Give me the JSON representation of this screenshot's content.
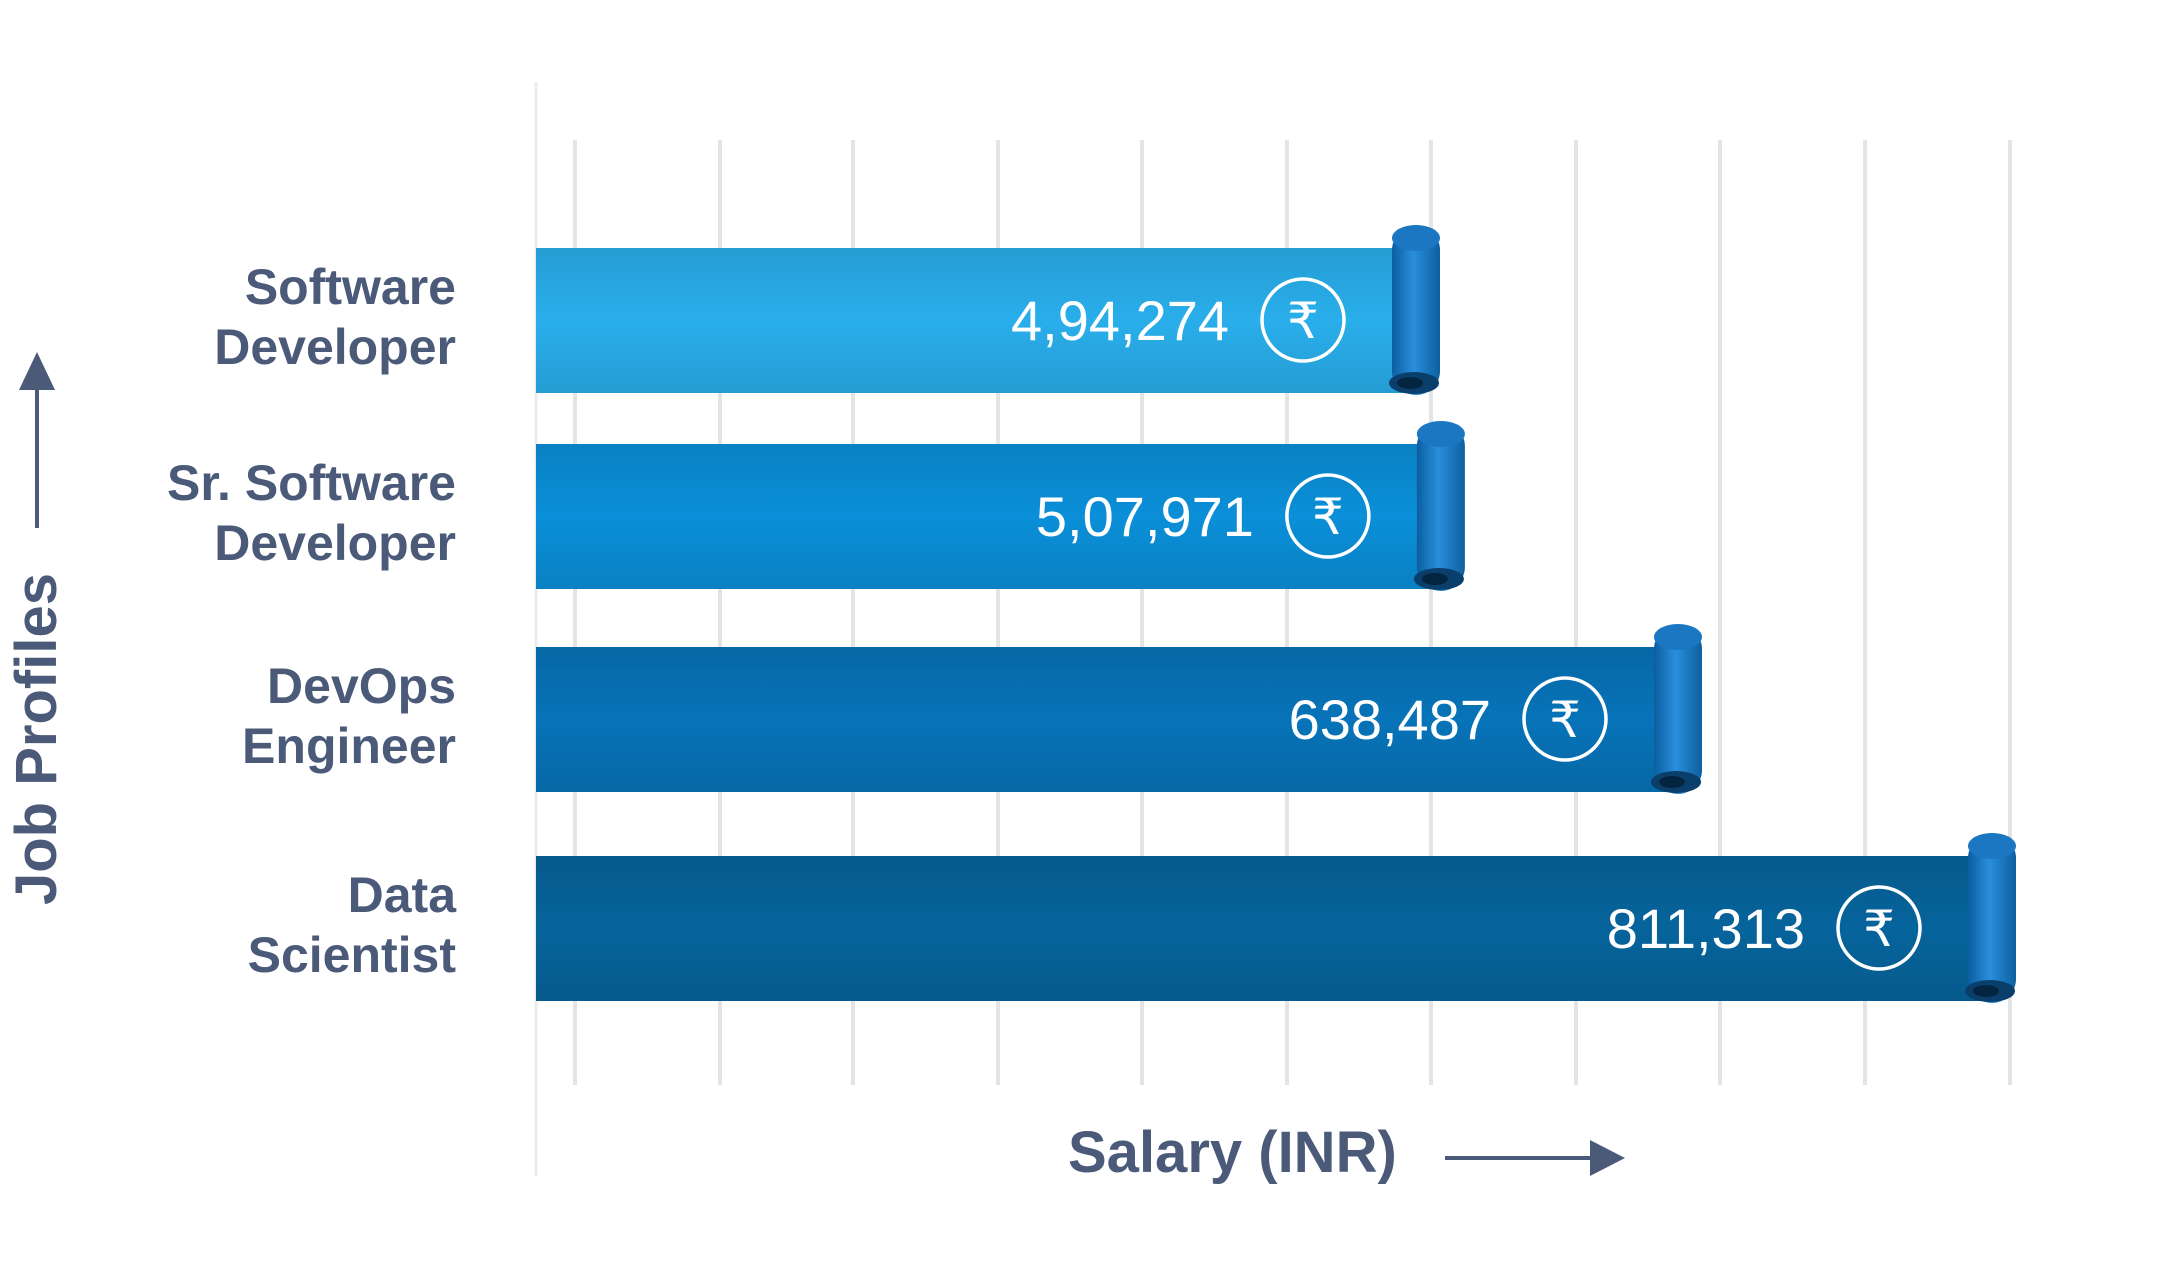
{
  "chart_data": {
    "type": "bar",
    "orientation": "horizontal",
    "categories": [
      [
        "Software",
        "Developer"
      ],
      [
        "Sr. Software",
        "Developer"
      ],
      [
        "DevOps",
        "Engineer"
      ],
      [
        "Data",
        "Scientist"
      ]
    ],
    "values": [
      494274,
      507971,
      638487,
      811313
    ],
    "value_labels": [
      "4,94,274",
      "5,07,971",
      "638,487",
      "811,313"
    ],
    "currency_icon": "rupee-icon",
    "currency_symbol": "₹",
    "xlabel": "Salary (INR)",
    "ylabel": "Job Profiles",
    "xlim": [
      0,
      811313
    ],
    "grid": "vertical",
    "bar_colors": [
      "#29aeeb",
      "#0a8fd8",
      "#0773b8",
      "#06649c"
    ],
    "curl_color": "#1c77c3"
  }
}
